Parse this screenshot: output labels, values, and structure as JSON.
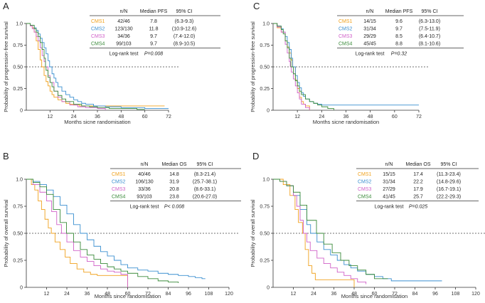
{
  "colors": {
    "CMS1": "#f0a11c",
    "CMS2": "#3a8fd0",
    "CMS3": "#d060c8",
    "CMS4": "#3a8a3a",
    "axis": "#333333",
    "ref": "#444444"
  },
  "chart_data": [
    {
      "panel": "A",
      "type": "line",
      "xlabel": "Months sicne randomisation",
      "ylabel": "Probability of progression-free survival",
      "xlim": [
        0,
        72
      ],
      "ylim": [
        0,
        1.0
      ],
      "xticks": [
        12,
        24,
        36,
        48,
        60,
        72
      ],
      "yticks": [
        "0",
        "0.25",
        "0.50",
        "0.75",
        "1.0"
      ],
      "reference_line": 0.5,
      "table": {
        "headers": [
          "",
          "n/N",
          "Median PFS",
          "95% CI"
        ],
        "rows": [
          {
            "group": "CMS1",
            "n": "42/46",
            "median": "7.8",
            "ci": "(6.3-9.3)"
          },
          {
            "group": "CMS2",
            "n": "123/130",
            "median": "11.8",
            "ci": "(10.9-12.6)"
          },
          {
            "group": "CMS3",
            "n": "34/36",
            "median": "9.7",
            "ci": "(7.4-12.0)"
          },
          {
            "group": "CMS4",
            "n": "99/103",
            "median": "9.7",
            "ci": "(8.9-10.5)"
          }
        ],
        "test_label": "Log-rank test",
        "p_value": "P=0.008"
      },
      "series": [
        {
          "name": "CMS1",
          "x": [
            0,
            2,
            3,
            4,
            5,
            6,
            7,
            7.8,
            9,
            10,
            11,
            12,
            13,
            14,
            16,
            18,
            20,
            22,
            24,
            27,
            30,
            70
          ],
          "y": [
            1,
            0.98,
            0.95,
            0.9,
            0.8,
            0.7,
            0.58,
            0.5,
            0.4,
            0.33,
            0.28,
            0.22,
            0.18,
            0.15,
            0.12,
            0.1,
            0.08,
            0.07,
            0.06,
            0.05,
            0.05,
            0.05
          ]
        },
        {
          "name": "CMS2",
          "x": [
            0,
            2,
            4,
            5,
            6,
            7,
            8,
            9,
            10,
            11,
            11.8,
            13,
            14,
            15,
            16,
            18,
            20,
            22,
            24,
            26,
            28,
            30,
            34,
            40,
            48,
            60,
            72
          ],
          "y": [
            1,
            0.98,
            0.95,
            0.92,
            0.88,
            0.83,
            0.78,
            0.72,
            0.65,
            0.57,
            0.5,
            0.42,
            0.37,
            0.32,
            0.27,
            0.22,
            0.18,
            0.15,
            0.12,
            0.1,
            0.08,
            0.07,
            0.05,
            0.04,
            0.03,
            0.02,
            0.02
          ]
        },
        {
          "name": "CMS3",
          "x": [
            0,
            2,
            3,
            4,
            5,
            6,
            7,
            8,
            9,
            9.7,
            11,
            12,
            14,
            16,
            18,
            22,
            26,
            30,
            36,
            40
          ],
          "y": [
            1,
            0.97,
            0.94,
            0.9,
            0.85,
            0.8,
            0.72,
            0.63,
            0.56,
            0.5,
            0.4,
            0.32,
            0.22,
            0.15,
            0.1,
            0.06,
            0.04,
            0.03,
            0.02,
            0
          ]
        },
        {
          "name": "CMS4",
          "x": [
            0,
            2,
            4,
            5,
            6,
            7,
            8,
            9,
            9.7,
            10,
            11,
            12,
            13,
            14,
            16,
            18,
            20,
            24,
            28,
            32,
            36,
            42,
            48,
            56,
            60
          ],
          "y": [
            1,
            0.98,
            0.94,
            0.9,
            0.85,
            0.78,
            0.7,
            0.6,
            0.5,
            0.46,
            0.38,
            0.32,
            0.27,
            0.22,
            0.17,
            0.13,
            0.1,
            0.07,
            0.05,
            0.04,
            0.03,
            0.02,
            0.02,
            0.01,
            0.01
          ]
        }
      ]
    },
    {
      "panel": "C",
      "type": "line",
      "xlabel": "Months sicne randomisation",
      "ylabel": "Probability of progression-free survival",
      "xlim": [
        0,
        72
      ],
      "ylim": [
        0,
        1.0
      ],
      "xticks": [
        12,
        24,
        36,
        48,
        60,
        72
      ],
      "yticks": [
        "0",
        "0.25",
        "0.50",
        "0.75",
        "1.0"
      ],
      "reference_line": 0.5,
      "table": {
        "headers": [
          "",
          "n/N",
          "Median PFS",
          "95% CI"
        ],
        "rows": [
          {
            "group": "CMS1",
            "n": "14/15",
            "median": "9.6",
            "ci": "(6.3-13.0)"
          },
          {
            "group": "CMS2",
            "n": "31/34",
            "median": "9.7",
            "ci": "(7.5-11.9)"
          },
          {
            "group": "CMS3",
            "n": "29/29",
            "median": "8.5",
            "ci": "(6.4-10.7)"
          },
          {
            "group": "CMS4",
            "n": "45/45",
            "median": "8.8",
            "ci": "(8.1-10.6)"
          }
        ],
        "test_label": "Log-rank test",
        "p_value": "P=0.32"
      },
      "series": [
        {
          "name": "CMS1",
          "x": [
            0,
            2,
            4,
            6,
            7,
            8,
            9,
            9.6,
            11,
            12,
            13,
            14,
            15,
            16,
            18
          ],
          "y": [
            1,
            0.95,
            0.9,
            0.8,
            0.73,
            0.66,
            0.58,
            0.5,
            0.35,
            0.25,
            0.15,
            0.1,
            0.07,
            0.05,
            0
          ]
        },
        {
          "name": "CMS2",
          "x": [
            0,
            2,
            4,
            5,
            6,
            7,
            8,
            9,
            9.7,
            11,
            12,
            13,
            14,
            15,
            16,
            18,
            20,
            22,
            24,
            30,
            40,
            48,
            56,
            72
          ],
          "y": [
            1,
            0.97,
            0.94,
            0.9,
            0.85,
            0.78,
            0.7,
            0.6,
            0.5,
            0.4,
            0.32,
            0.26,
            0.2,
            0.16,
            0.13,
            0.1,
            0.08,
            0.07,
            0.06,
            0.06,
            0.06,
            0.06,
            0.06,
            0.06
          ]
        },
        {
          "name": "CMS3",
          "x": [
            0,
            2,
            4,
            6,
            7,
            8,
            8.5,
            9,
            10,
            11,
            12,
            13,
            14,
            16,
            18
          ],
          "y": [
            1,
            0.96,
            0.9,
            0.76,
            0.66,
            0.56,
            0.5,
            0.44,
            0.36,
            0.28,
            0.2,
            0.13,
            0.07,
            0.03,
            0
          ]
        },
        {
          "name": "CMS4",
          "x": [
            0,
            2,
            4,
            5,
            6,
            7,
            8,
            8.8,
            10,
            11,
            12,
            13,
            14,
            16,
            18,
            20,
            22,
            24,
            27,
            30
          ],
          "y": [
            1,
            0.97,
            0.93,
            0.88,
            0.8,
            0.72,
            0.6,
            0.5,
            0.42,
            0.34,
            0.28,
            0.22,
            0.18,
            0.13,
            0.1,
            0.08,
            0.06,
            0.04,
            0.02,
            0
          ]
        }
      ]
    },
    {
      "panel": "B",
      "type": "line",
      "xlabel": "Months since randomisation",
      "ylabel": "Probability of overall survival",
      "xlim": [
        0,
        120
      ],
      "ylim": [
        0,
        1.0
      ],
      "xticks": [
        12,
        24,
        36,
        48,
        60,
        72,
        84,
        96,
        108,
        120
      ],
      "yticks": [
        "0",
        "0.25",
        "0.50",
        "0.75",
        "1.0"
      ],
      "reference_line": 0.5,
      "table": {
        "headers": [
          "",
          "n/N",
          "Median OS",
          "95% CI"
        ],
        "rows": [
          {
            "group": "CMS1",
            "n": "40/46",
            "median": "14.8",
            "ci": "(8.3-21.4)"
          },
          {
            "group": "CMS2",
            "n": "106/130",
            "median": "31.9",
            "ci": "(25.7-38.1)"
          },
          {
            "group": "CMS3",
            "n": "33/36",
            "median": "20.8",
            "ci": "(8.6-33.1)"
          },
          {
            "group": "CMS4",
            "n": "93/103",
            "median": "23.8",
            "ci": "(20.6-27.0)"
          }
        ],
        "test_label": "Log-rank test",
        "p_value": "P< 0.008"
      },
      "series": [
        {
          "name": "CMS1",
          "x": [
            0,
            3,
            5,
            7,
            9,
            11,
            13,
            14.8,
            17,
            20,
            23,
            26,
            30,
            34,
            38,
            42,
            46,
            50,
            54,
            57,
            60
          ],
          "y": [
            1,
            0.95,
            0.9,
            0.8,
            0.72,
            0.63,
            0.55,
            0.5,
            0.42,
            0.35,
            0.28,
            0.22,
            0.17,
            0.14,
            0.12,
            0.11,
            0.11,
            0.11,
            0.11,
            0.11,
            0
          ]
        },
        {
          "name": "CMS2",
          "x": [
            0,
            4,
            8,
            12,
            16,
            20,
            24,
            28,
            31.9,
            36,
            40,
            44,
            48,
            52,
            56,
            60,
            66,
            72,
            78,
            84,
            90,
            96,
            100,
            104,
            106
          ],
          "y": [
            1,
            0.98,
            0.95,
            0.9,
            0.84,
            0.76,
            0.68,
            0.58,
            0.5,
            0.44,
            0.38,
            0.33,
            0.29,
            0.25,
            0.21,
            0.18,
            0.16,
            0.15,
            0.13,
            0.12,
            0.11,
            0.1,
            0.09,
            0.08,
            0.08
          ]
        },
        {
          "name": "CMS3",
          "x": [
            0,
            4,
            8,
            12,
            15,
            18,
            20.8,
            24,
            28,
            32,
            36,
            40,
            44,
            48,
            52,
            56,
            60
          ],
          "y": [
            1,
            0.95,
            0.88,
            0.8,
            0.7,
            0.58,
            0.5,
            0.42,
            0.34,
            0.28,
            0.24,
            0.2,
            0.17,
            0.15,
            0.14,
            0.12,
            0
          ]
        },
        {
          "name": "CMS4",
          "x": [
            0,
            4,
            8,
            12,
            16,
            20,
            23.8,
            28,
            32,
            36,
            40,
            44,
            48,
            52,
            56,
            60,
            66,
            72,
            78,
            84,
            90
          ],
          "y": [
            1,
            0.97,
            0.93,
            0.86,
            0.72,
            0.6,
            0.5,
            0.42,
            0.35,
            0.3,
            0.26,
            0.22,
            0.19,
            0.17,
            0.15,
            0.13,
            0.1,
            0.08,
            0.06,
            0.05,
            0.04
          ]
        }
      ]
    },
    {
      "panel": "D",
      "type": "line",
      "xlabel": "Months since randomisation",
      "ylabel": "Probability of overall survival",
      "xlim": [
        0,
        120
      ],
      "ylim": [
        0,
        1.0
      ],
      "xticks": [
        12,
        24,
        36,
        48,
        60,
        72,
        84,
        96,
        108,
        120
      ],
      "yticks": [
        "0",
        "0.25",
        "0.50",
        "0.75",
        "1.0"
      ],
      "reference_line": 0.5,
      "table": {
        "headers": [
          "",
          "n/N",
          "Median OS",
          "95% CI"
        ],
        "rows": [
          {
            "group": "CMS1",
            "n": "15/15",
            "median": "17.4",
            "ci": "(11.3-23.4)"
          },
          {
            "group": "CMS2",
            "n": "31/34",
            "median": "22.2",
            "ci": "(14.8-29.6)"
          },
          {
            "group": "CMS3",
            "n": "27/29",
            "median": "17.9",
            "ci": "(16.7-19.1)"
          },
          {
            "group": "CMS4",
            "n": "41/45",
            "median": "25.7",
            "ci": "(22.2-29.3)"
          }
        ],
        "test_label": "Log-rank test",
        "p_value": "P=0.025"
      },
      "series": [
        {
          "name": "CMS1",
          "x": [
            0,
            6,
            10,
            13,
            15,
            17.4,
            19,
            21,
            23,
            25,
            28,
            32,
            36,
            40,
            48
          ],
          "y": [
            1,
            0.95,
            0.85,
            0.72,
            0.6,
            0.5,
            0.35,
            0.2,
            0.13,
            0.07,
            0.07,
            0.07,
            0.07,
            0.07,
            0
          ]
        },
        {
          "name": "CMS2",
          "x": [
            0,
            4,
            8,
            12,
            16,
            20,
            22.2,
            26,
            30,
            34,
            38,
            42,
            46,
            50,
            55,
            60,
            65,
            70,
            80,
            90,
            100
          ],
          "y": [
            1,
            0.98,
            0.94,
            0.85,
            0.72,
            0.58,
            0.5,
            0.42,
            0.35,
            0.3,
            0.25,
            0.21,
            0.18,
            0.15,
            0.12,
            0.1,
            0.08,
            0.06,
            0.06,
            0.06,
            0.06
          ]
        },
        {
          "name": "CMS3",
          "x": [
            0,
            4,
            8,
            12,
            14,
            16,
            17.9,
            20,
            22,
            26,
            30,
            34,
            38,
            42,
            46,
            50,
            55
          ],
          "y": [
            1,
            0.98,
            0.94,
            0.85,
            0.75,
            0.62,
            0.5,
            0.42,
            0.34,
            0.27,
            0.22,
            0.18,
            0.14,
            0.11,
            0.08,
            0.05,
            0.03
          ]
        },
        {
          "name": "CMS4",
          "x": [
            0,
            4,
            8,
            12,
            16,
            20,
            25.7,
            30,
            35,
            40,
            45,
            50,
            55,
            60,
            64,
            68
          ],
          "y": [
            1,
            0.98,
            0.94,
            0.88,
            0.76,
            0.62,
            0.5,
            0.4,
            0.32,
            0.25,
            0.2,
            0.16,
            0.12,
            0.08,
            0.08,
            0.08
          ]
        }
      ]
    }
  ]
}
